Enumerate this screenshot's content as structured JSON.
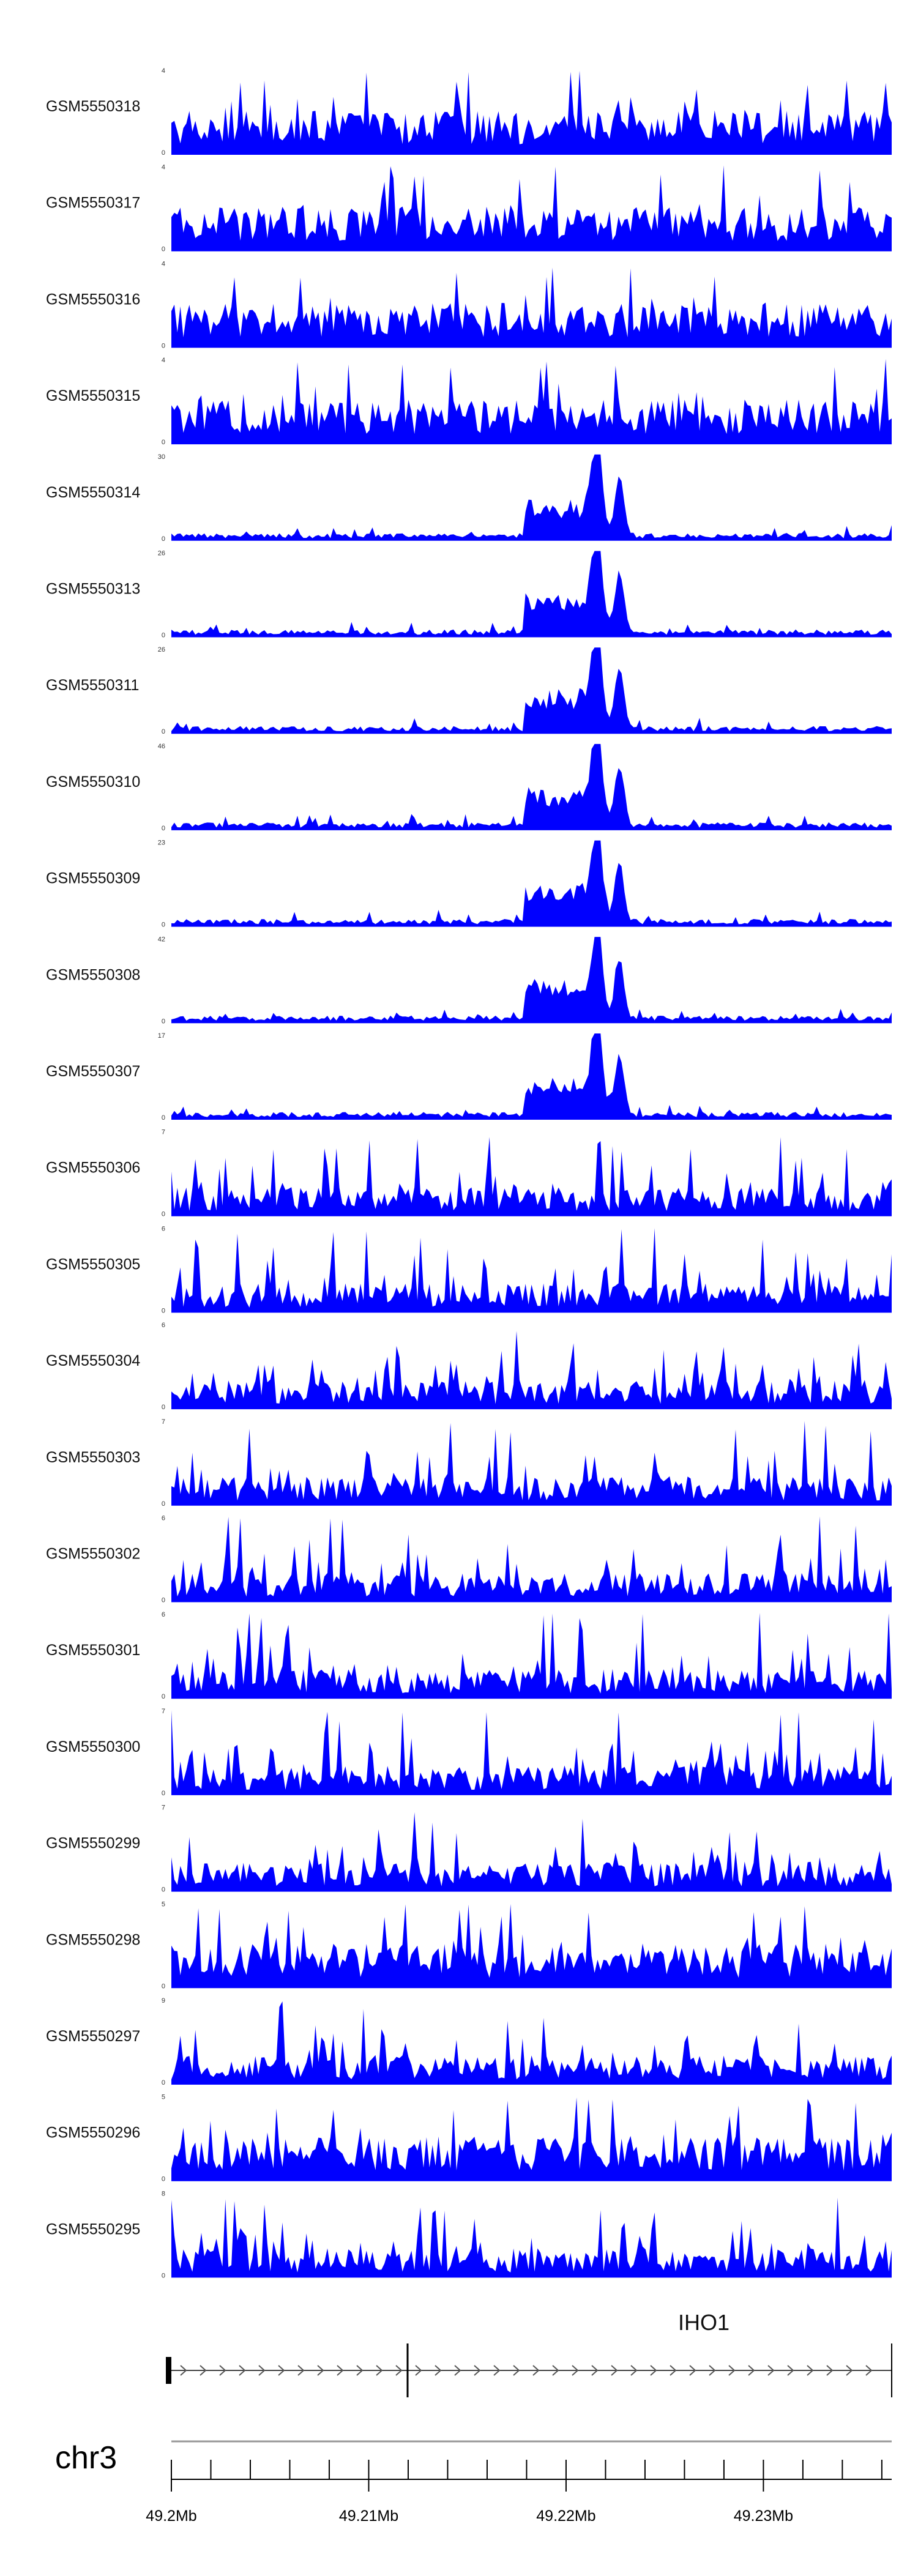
{
  "chart_data": {
    "type": "area",
    "title": "",
    "chromosome": "chr3",
    "x_range_mb": [
      49.2,
      49.2365
    ],
    "x_ticks": [
      {
        "mb": 49.2,
        "label": "49.2Mb"
      },
      {
        "mb": 49.21,
        "label": "49.21Mb"
      },
      {
        "mb": 49.22,
        "label": "49.22Mb"
      },
      {
        "mb": 49.23,
        "label": "49.23Mb"
      }
    ],
    "fill_color": "#0000ff",
    "series": [
      {
        "name": "GSM5550318",
        "ymax": 4,
        "profile": "flat"
      },
      {
        "name": "GSM5550317",
        "ymax": 4,
        "profile": "flat"
      },
      {
        "name": "GSM5550316",
        "ymax": 4,
        "profile": "flat"
      },
      {
        "name": "GSM5550315",
        "ymax": 4,
        "profile": "flat"
      },
      {
        "name": "GSM5550314",
        "ymax": 30,
        "profile": "peak"
      },
      {
        "name": "GSM5550313",
        "ymax": 26,
        "profile": "peak"
      },
      {
        "name": "GSM5550311",
        "ymax": 26,
        "profile": "peak"
      },
      {
        "name": "GSM5550310",
        "ymax": 46,
        "profile": "peak"
      },
      {
        "name": "GSM5550309",
        "ymax": 23,
        "profile": "peak"
      },
      {
        "name": "GSM5550308",
        "ymax": 42,
        "profile": "peak"
      },
      {
        "name": "GSM5550307",
        "ymax": 17,
        "profile": "peak"
      },
      {
        "name": "GSM5550306",
        "ymax": 7,
        "profile": "spiky"
      },
      {
        "name": "GSM5550305",
        "ymax": 6,
        "profile": "spiky"
      },
      {
        "name": "GSM5550304",
        "ymax": 6,
        "profile": "spiky"
      },
      {
        "name": "GSM5550303",
        "ymax": 7,
        "profile": "spiky"
      },
      {
        "name": "GSM5550302",
        "ymax": 6,
        "profile": "spiky"
      },
      {
        "name": "GSM5550301",
        "ymax": 6,
        "profile": "spiky"
      },
      {
        "name": "GSM5550300",
        "ymax": 7,
        "profile": "spiky"
      },
      {
        "name": "GSM5550299",
        "ymax": 7,
        "profile": "spiky"
      },
      {
        "name": "GSM5550298",
        "ymax": 5,
        "profile": "flat"
      },
      {
        "name": "GSM5550297",
        "ymax": 9,
        "profile": "spiky"
      },
      {
        "name": "GSM5550296",
        "ymax": 5,
        "profile": "flat"
      },
      {
        "name": "GSM5550295",
        "ymax": 8,
        "profile": "spiky"
      }
    ],
    "ymin": 0,
    "gene_track": {
      "gene": "IHO1",
      "strand": "+",
      "start_mb": 49.2,
      "exon_mb": 49.2116,
      "end_mb": 49.2365
    }
  }
}
